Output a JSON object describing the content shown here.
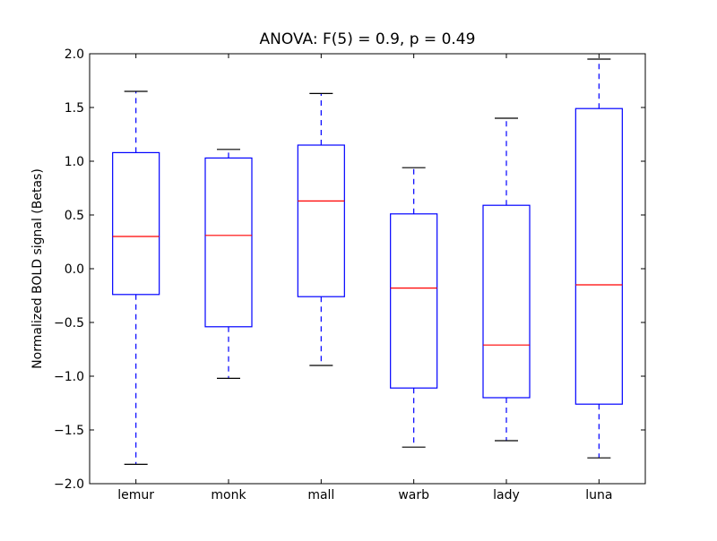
{
  "chart_data": {
    "type": "box",
    "title": "ANOVA: F(5) = 0.9, p = 0.49",
    "xlabel": "",
    "ylabel": "Normalized BOLD signal (Betas)",
    "ylim": [
      -2.0,
      2.0
    ],
    "yticks": [
      -2.0,
      -1.5,
      -1.0,
      -0.5,
      0.0,
      0.5,
      1.0,
      1.5,
      2.0
    ],
    "ytick_labels": [
      "−2.0",
      "−1.5",
      "−1.0",
      "−0.5",
      "0.0",
      "0.5",
      "1.0",
      "1.5",
      "2.0"
    ],
    "grid": false,
    "legend": "none",
    "categories": [
      "lemur",
      "monk",
      "mall",
      "warb",
      "lady",
      "luna"
    ],
    "boxes": [
      {
        "whisker_low": -1.82,
        "q1": -0.24,
        "median": 0.3,
        "q3": 1.08,
        "whisker_high": 1.65
      },
      {
        "whisker_low": -1.02,
        "q1": -0.54,
        "median": 0.31,
        "q3": 1.03,
        "whisker_high": 1.11
      },
      {
        "whisker_low": -0.9,
        "q1": -0.26,
        "median": 0.63,
        "q3": 1.15,
        "whisker_high": 1.63
      },
      {
        "whisker_low": -1.66,
        "q1": -1.11,
        "median": -0.18,
        "q3": 0.51,
        "whisker_high": 0.94
      },
      {
        "whisker_low": -1.6,
        "q1": -1.2,
        "median": -0.71,
        "q3": 0.59,
        "whisker_high": 1.4
      },
      {
        "whisker_low": -1.76,
        "q1": -1.26,
        "median": -0.15,
        "q3": 1.49,
        "whisker_high": 1.95
      }
    ],
    "colors": {
      "box": "#0000ff",
      "median": "#ff0000",
      "whisker": "#0000ff",
      "cap": "#000000",
      "axes": "#000000"
    }
  }
}
